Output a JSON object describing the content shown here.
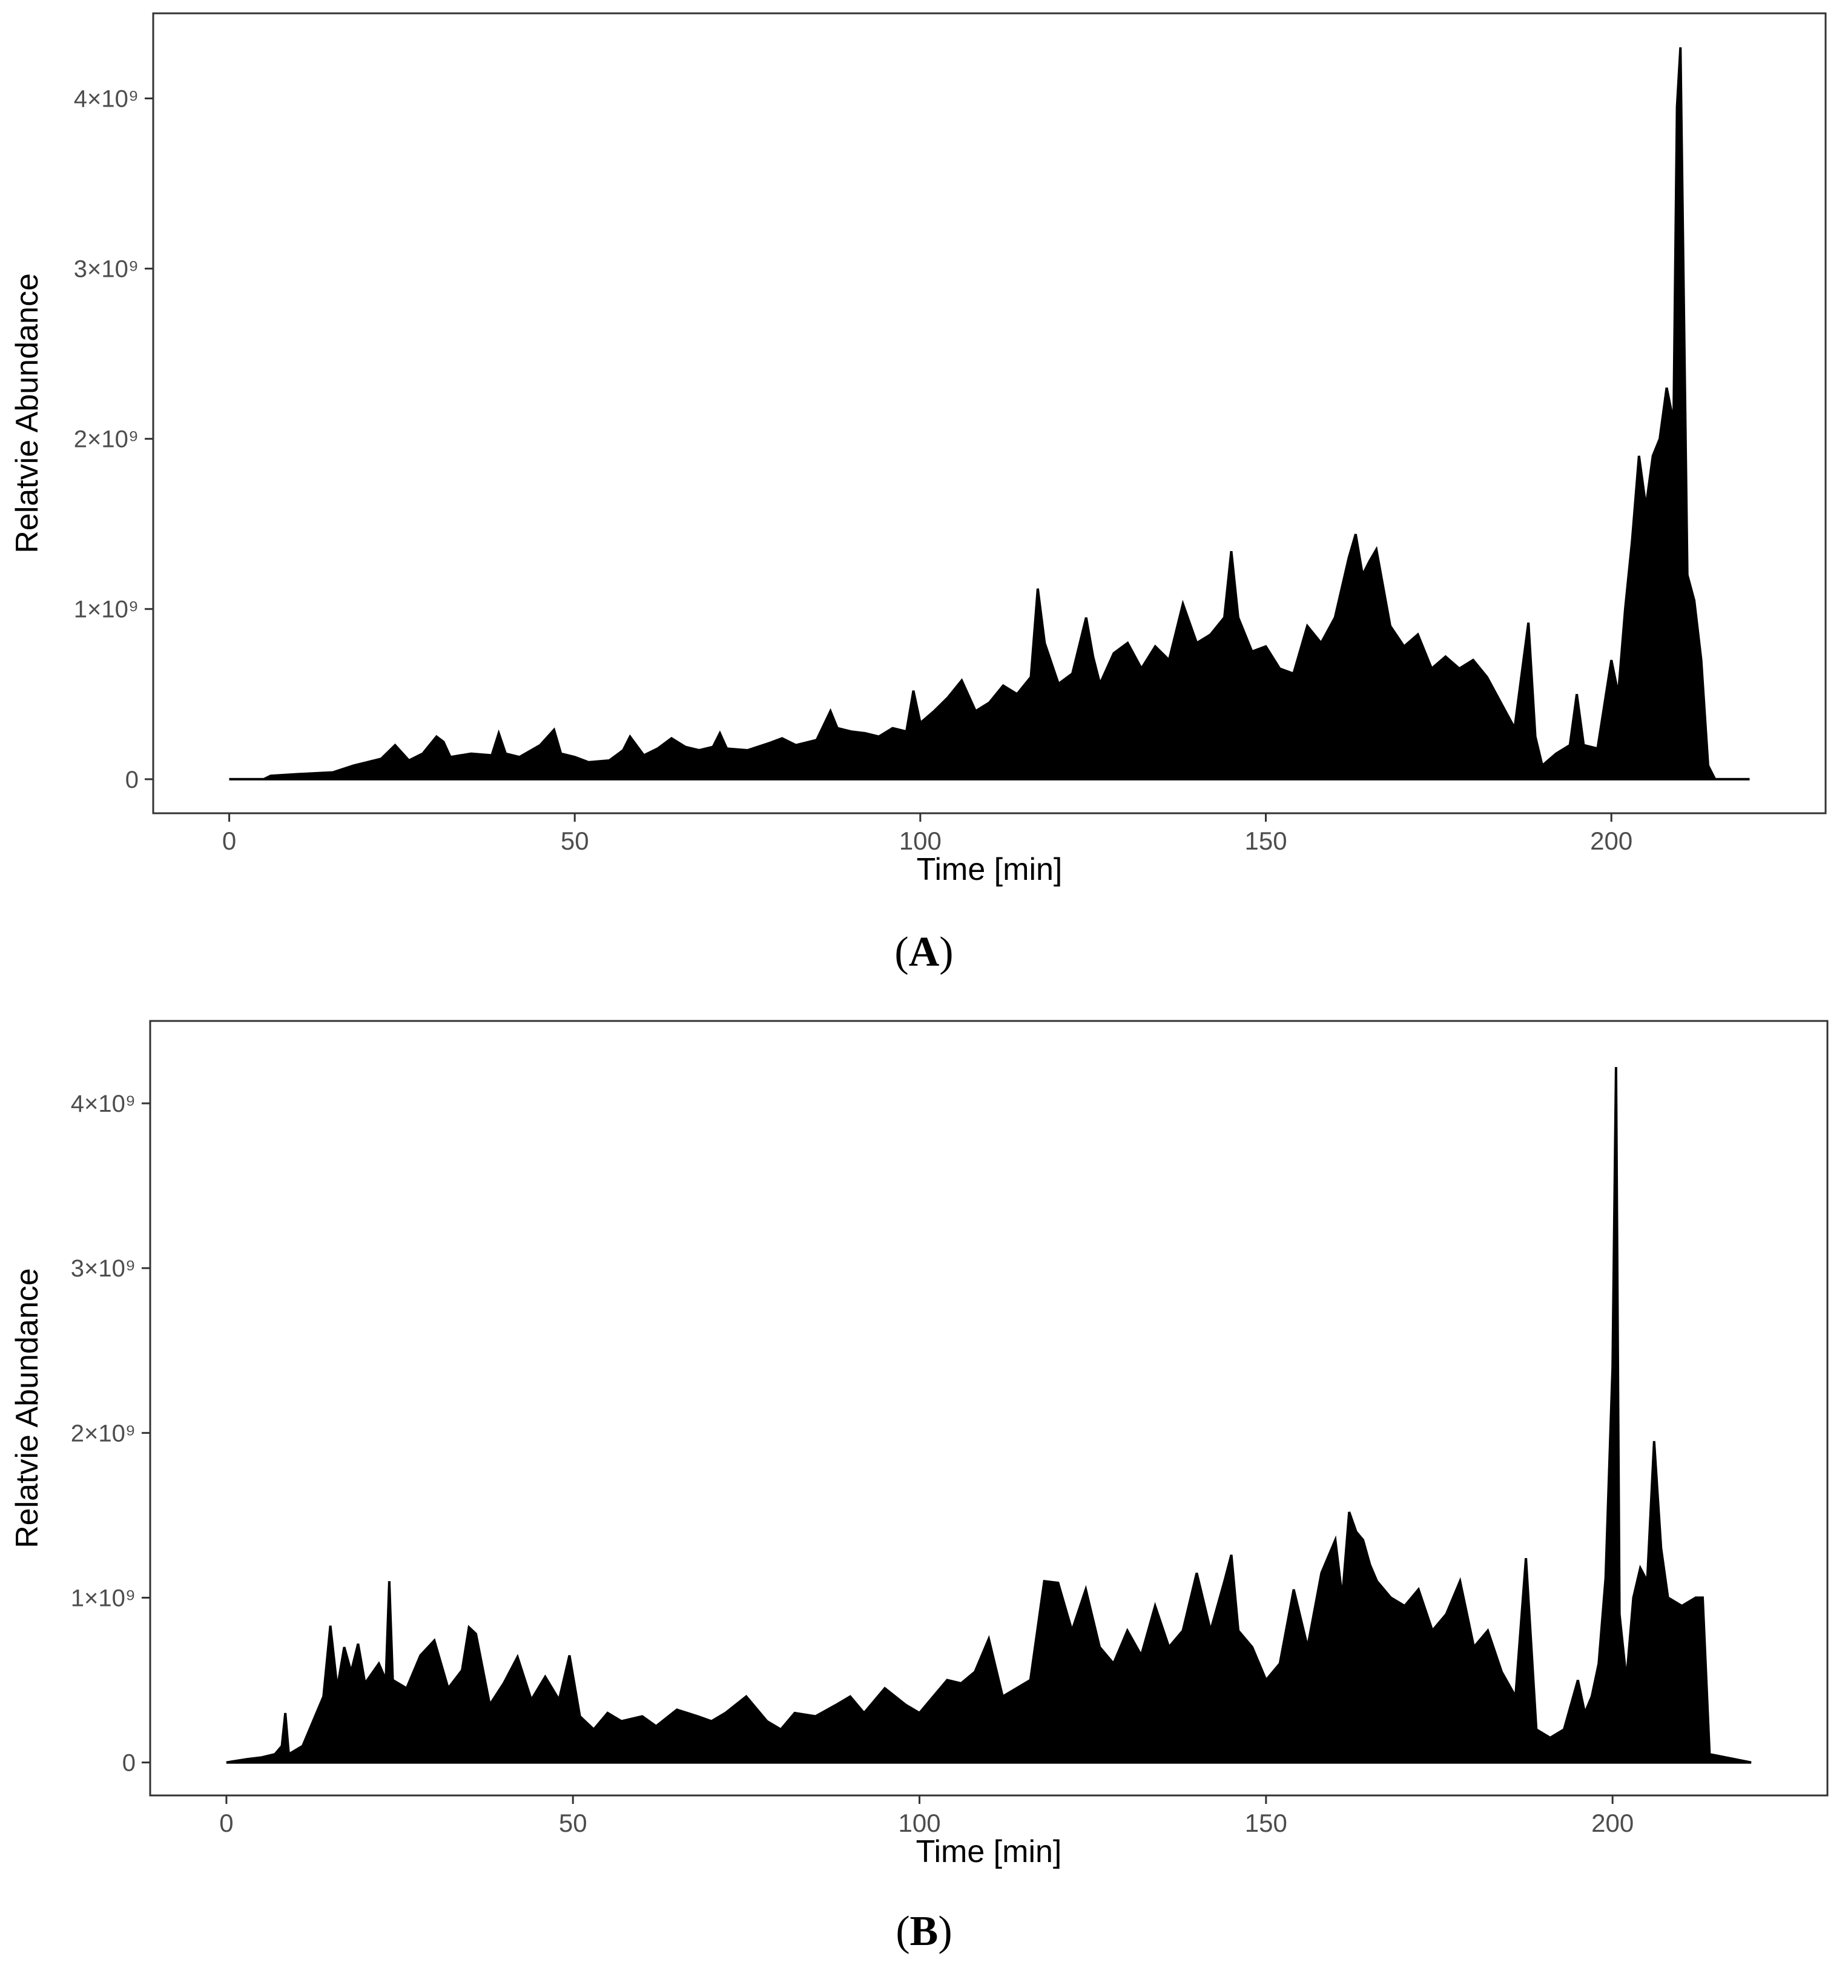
{
  "chart_data": [
    {
      "type": "area",
      "panel_label_letter": "A",
      "xlabel": "Time [min]",
      "ylabel": "Relatvie Abundance",
      "xlim": [
        -11,
        231
      ],
      "ylim": [
        -200000000,
        4500000000
      ],
      "x_ticks": [
        0,
        50,
        100,
        150,
        200
      ],
      "x_tick_labels": [
        "0",
        "50",
        "100",
        "150",
        "200"
      ],
      "y_ticks": [
        0,
        1000000000,
        2000000000,
        3000000000,
        4000000000
      ],
      "y_tick_labels": [
        "0",
        "1×10⁹",
        "2×10⁹",
        "3×10⁹",
        "4×10⁹"
      ],
      "grid": false,
      "fill_color": "#000000",
      "series": [
        {
          "x": [
            0,
            5,
            6,
            10,
            15,
            18,
            20,
            22,
            24,
            26,
            28,
            30,
            31,
            32,
            35,
            38,
            39,
            40,
            42,
            45,
            47,
            48,
            50,
            52,
            55,
            57,
            58,
            60,
            62,
            64,
            66,
            68,
            70,
            71,
            72,
            75,
            78,
            80,
            82,
            85,
            87,
            88,
            90,
            92,
            94,
            96,
            98,
            99,
            100,
            102,
            104,
            106,
            108,
            110,
            112,
            114,
            116,
            117,
            118,
            120,
            122,
            124,
            125,
            126,
            128,
            130,
            132,
            134,
            136,
            138,
            140,
            142,
            144,
            145,
            146,
            148,
            150,
            152,
            154,
            156,
            158,
            160,
            162,
            163,
            164,
            165,
            166,
            168,
            170,
            172,
            174,
            176,
            178,
            180,
            182,
            184,
            186,
            188,
            189,
            190,
            192,
            194,
            195,
            196,
            198,
            200,
            201,
            202,
            203,
            204,
            205,
            206,
            207,
            208,
            209,
            209.5,
            210,
            211,
            212,
            213,
            214,
            215,
            220
          ],
          "y": [
            0,
            0,
            20000000,
            30000000,
            40000000,
            80000000,
            100000000,
            120000000,
            200000000,
            110000000,
            150000000,
            250000000,
            220000000,
            130000000,
            150000000,
            140000000,
            270000000,
            150000000,
            130000000,
            200000000,
            290000000,
            150000000,
            130000000,
            100000000,
            110000000,
            170000000,
            250000000,
            140000000,
            180000000,
            240000000,
            190000000,
            170000000,
            190000000,
            270000000,
            180000000,
            170000000,
            210000000,
            240000000,
            200000000,
            230000000,
            400000000,
            300000000,
            280000000,
            270000000,
            250000000,
            300000000,
            280000000,
            520000000,
            330000000,
            400000000,
            480000000,
            580000000,
            400000000,
            450000000,
            550000000,
            500000000,
            600000000,
            1120000000,
            800000000,
            560000000,
            620000000,
            950000000,
            720000000,
            560000000,
            740000000,
            800000000,
            650000000,
            780000000,
            700000000,
            1030000000,
            800000000,
            850000000,
            950000000,
            1340000000,
            950000000,
            750000000,
            780000000,
            650000000,
            620000000,
            900000000,
            800000000,
            950000000,
            1300000000,
            1440000000,
            1200000000,
            1280000000,
            1350000000,
            900000000,
            780000000,
            850000000,
            650000000,
            720000000,
            650000000,
            700000000,
            600000000,
            450000000,
            300000000,
            920000000,
            250000000,
            80000000,
            150000000,
            200000000,
            500000000,
            200000000,
            180000000,
            700000000,
            500000000,
            1000000000,
            1400000000,
            1900000000,
            1600000000,
            1900000000,
            2000000000,
            2300000000,
            2100000000,
            3950000000,
            4300000000,
            1200000000,
            1050000000,
            700000000,
            80000000,
            0,
            0
          ]
        }
      ]
    },
    {
      "type": "area",
      "panel_label_letter": "B",
      "xlabel": "Time [min]",
      "ylabel": "Relatvie Abundance",
      "xlim": [
        -11,
        231
      ],
      "ylim": [
        -200000000,
        4500000000
      ],
      "x_ticks": [
        0,
        50,
        100,
        150,
        200
      ],
      "x_tick_labels": [
        "0",
        "50",
        "100",
        "150",
        "200"
      ],
      "y_ticks": [
        0,
        1000000000,
        2000000000,
        3000000000,
        4000000000
      ],
      "y_tick_labels": [
        "0",
        "1×10⁹",
        "2×10⁹",
        "3×10⁹",
        "4×10⁹"
      ],
      "grid": false,
      "fill_color": "#000000",
      "series": [
        {
          "x": [
            0,
            3,
            5,
            7,
            8,
            8.5,
            9,
            11,
            13,
            14,
            15,
            16,
            17,
            18,
            19,
            20,
            22,
            23,
            23.5,
            24,
            26,
            28,
            30,
            32,
            34,
            35,
            36,
            38,
            40,
            42,
            44,
            46,
            48,
            49.5,
            51,
            53,
            55,
            57,
            60,
            62,
            65,
            68,
            70,
            72,
            75,
            78,
            80,
            82,
            85,
            88,
            90,
            92,
            95,
            98,
            100,
            102,
            104,
            106,
            108,
            110,
            112,
            114,
            116,
            118,
            120,
            122,
            124,
            126,
            128,
            130,
            132,
            134,
            136,
            138,
            140,
            142,
            144,
            145,
            146,
            148,
            150,
            152,
            154,
            156,
            158,
            160,
            161,
            162,
            163,
            164,
            165,
            166,
            168,
            170,
            172,
            174,
            176,
            178,
            180,
            182,
            184,
            186,
            187.5,
            189,
            191,
            193,
            195,
            196,
            197,
            198,
            199,
            200,
            200.5,
            201,
            202,
            203,
            204,
            205,
            206,
            207,
            208,
            210,
            212,
            213,
            214,
            220
          ],
          "y": [
            0,
            20000000,
            30000000,
            50000000,
            100000000,
            300000000,
            50000000,
            100000000,
            300000000,
            400000000,
            830000000,
            450000000,
            700000000,
            550000000,
            720000000,
            480000000,
            600000000,
            500000000,
            1100000000,
            500000000,
            450000000,
            650000000,
            740000000,
            450000000,
            560000000,
            820000000,
            780000000,
            350000000,
            480000000,
            640000000,
            380000000,
            520000000,
            380000000,
            650000000,
            280000000,
            200000000,
            300000000,
            250000000,
            280000000,
            220000000,
            320000000,
            280000000,
            250000000,
            300000000,
            400000000,
            250000000,
            200000000,
            300000000,
            280000000,
            350000000,
            400000000,
            300000000,
            450000000,
            350000000,
            300000000,
            400000000,
            500000000,
            480000000,
            550000000,
            750000000,
            400000000,
            450000000,
            500000000,
            1100000000,
            1090000000,
            800000000,
            1050000000,
            700000000,
            600000000,
            800000000,
            650000000,
            950000000,
            700000000,
            800000000,
            1150000000,
            800000000,
            1100000000,
            1260000000,
            800000000,
            700000000,
            500000000,
            600000000,
            1050000000,
            700000000,
            1150000000,
            1350000000,
            1000000000,
            1520000000,
            1400000000,
            1350000000,
            1200000000,
            1100000000,
            1000000000,
            950000000,
            1050000000,
            800000000,
            900000000,
            1100000000,
            700000000,
            800000000,
            550000000,
            400000000,
            1240000000,
            200000000,
            150000000,
            200000000,
            500000000,
            300000000,
            400000000,
            600000000,
            1120000000,
            2400000000,
            4220000000,
            900000000,
            500000000,
            1000000000,
            1180000000,
            1100000000,
            1950000000,
            1300000000,
            1000000000,
            950000000,
            1000000000,
            1000000000,
            50000000,
            0
          ]
        }
      ]
    }
  ]
}
